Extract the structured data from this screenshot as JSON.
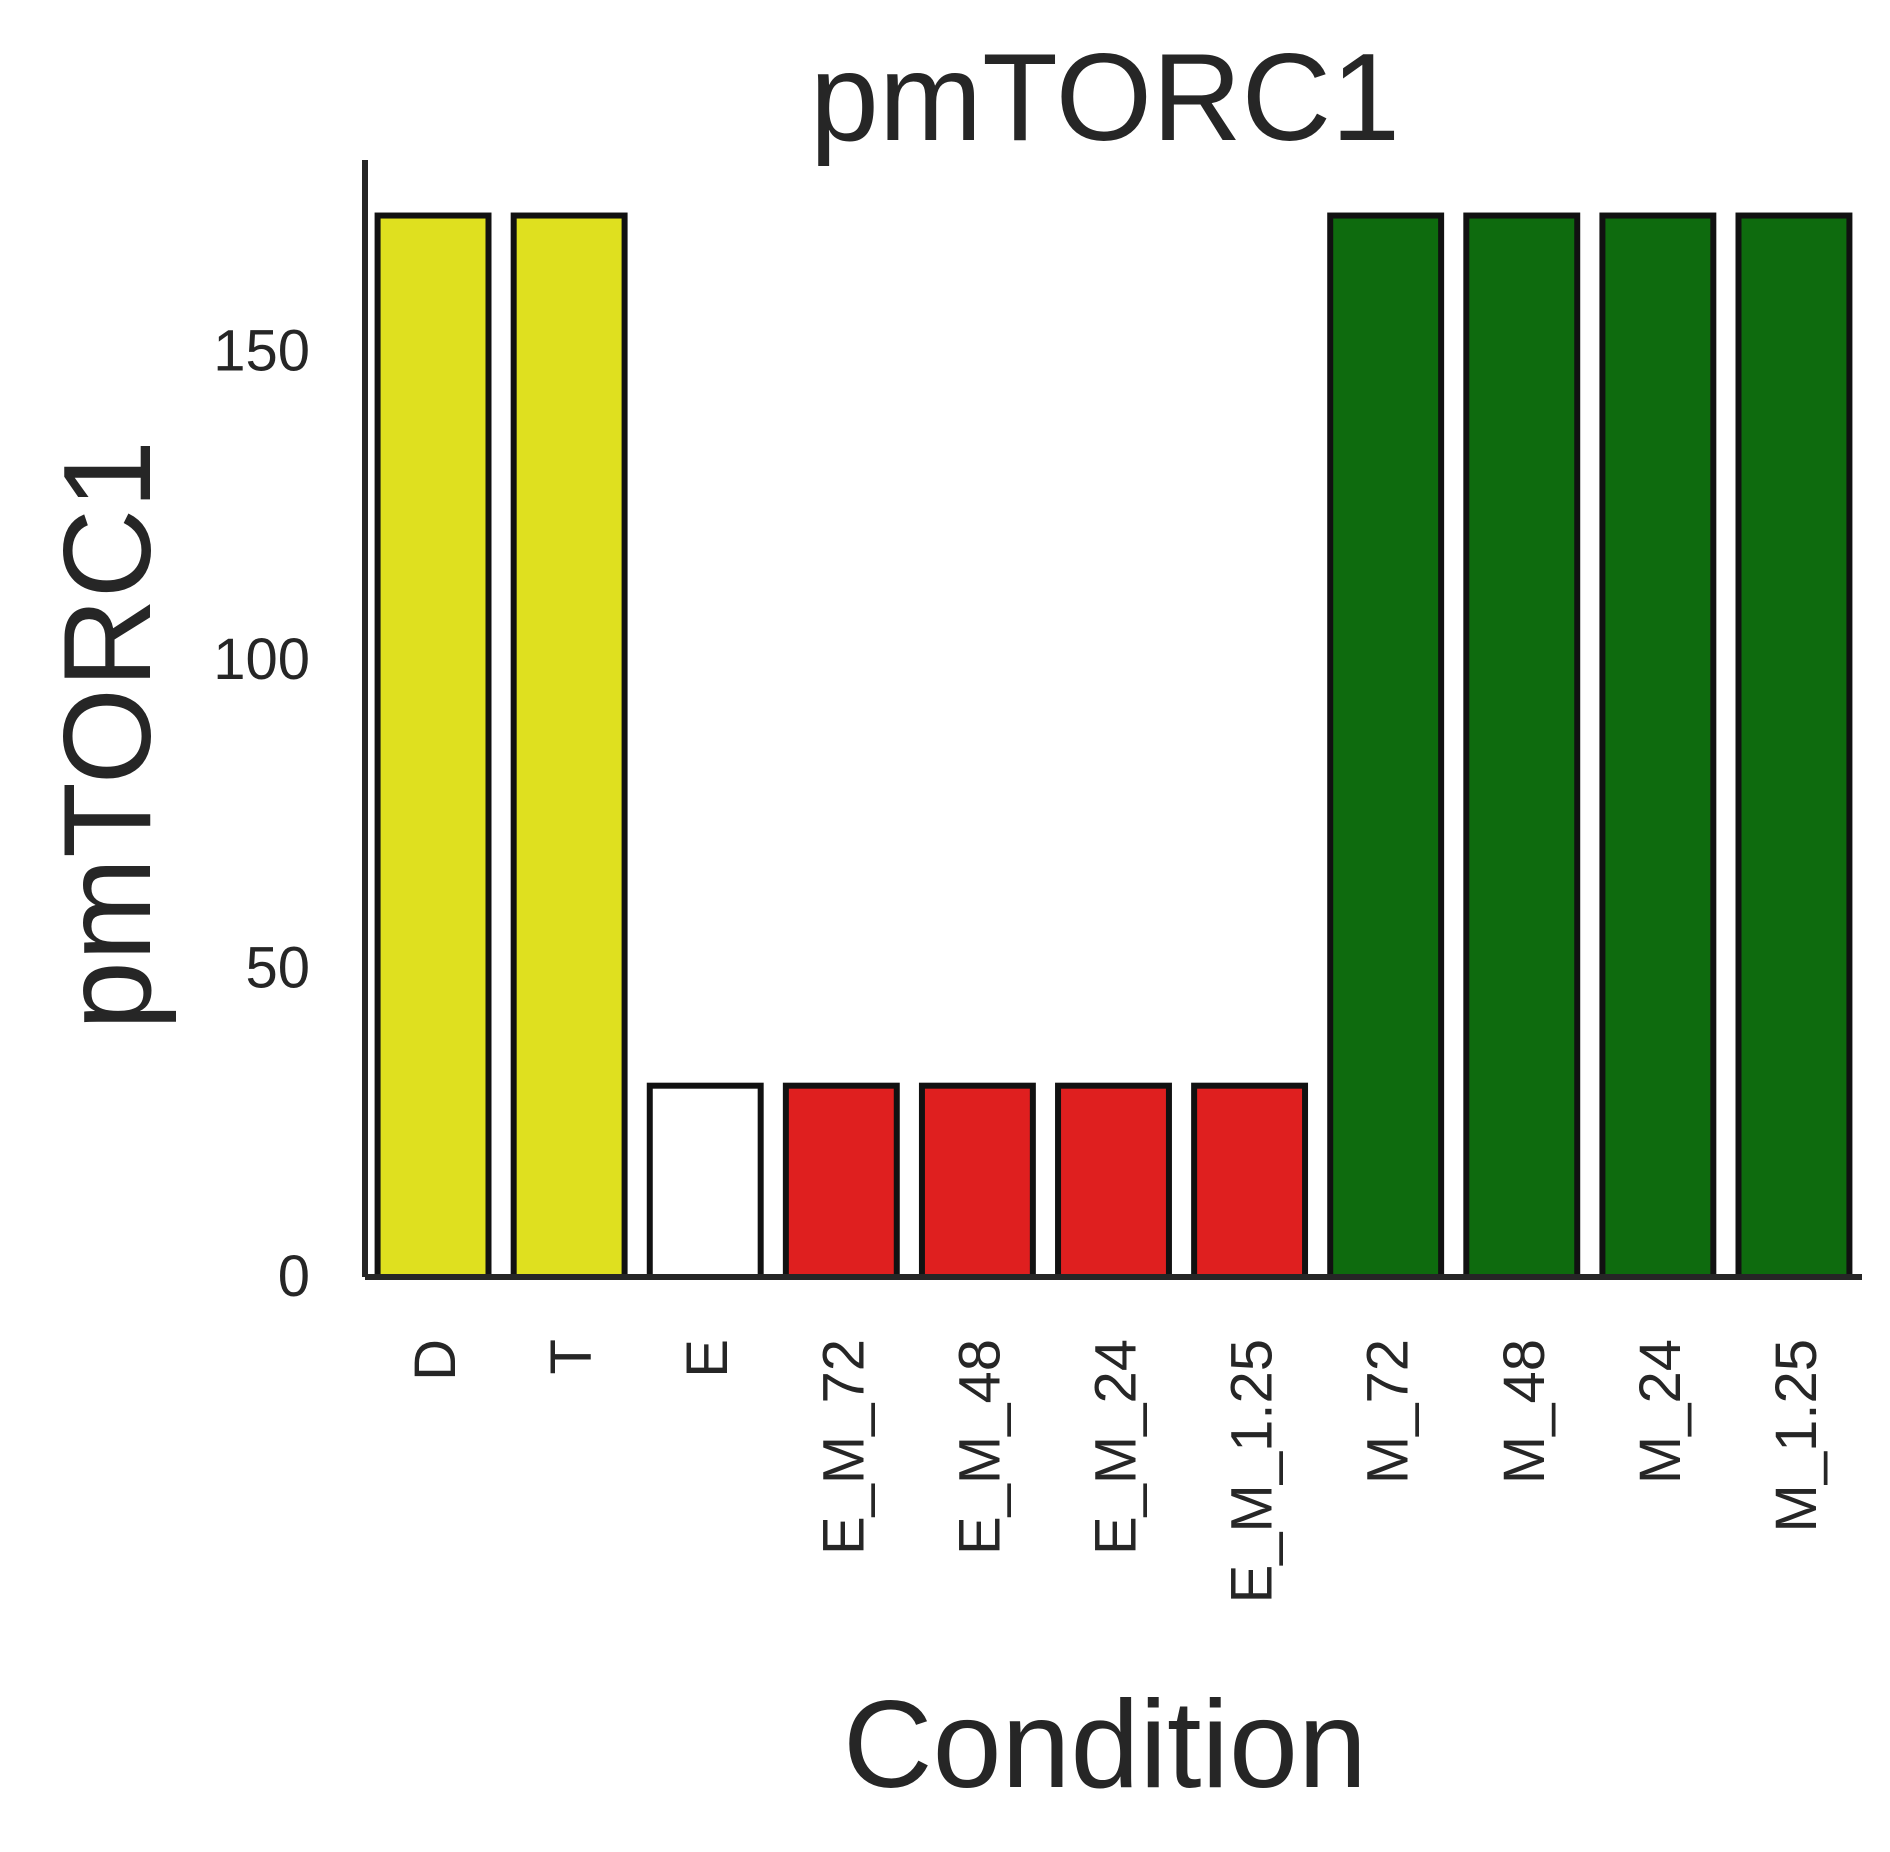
{
  "chart_data": {
    "type": "bar",
    "title": "pmTORC1",
    "xlabel": "Condition",
    "ylabel": "pmTORC1",
    "categories": [
      "D",
      "T",
      "E",
      "E_M_72",
      "E_M_48",
      "E_M_24",
      "E_M_1.25",
      "M_72",
      "M_48",
      "M_24",
      "M_1.25"
    ],
    "values": [
      172,
      172,
      31,
      31,
      31,
      31,
      31,
      172,
      172,
      172,
      172
    ],
    "bar_colors": [
      "#dfe01f",
      "#dfe01f",
      "#ffffff",
      "#df1f1f",
      "#df1f1f",
      "#df1f1f",
      "#df1f1f",
      "#0e6b0e",
      "#0e6b0e",
      "#0e6b0e",
      "#0e6b0e"
    ],
    "edge_color": "#111111",
    "axis_color": "#262626",
    "yticks": [
      0,
      50,
      100,
      150
    ],
    "ylim": [
      0,
      181
    ],
    "grid": false,
    "legend": "none"
  }
}
